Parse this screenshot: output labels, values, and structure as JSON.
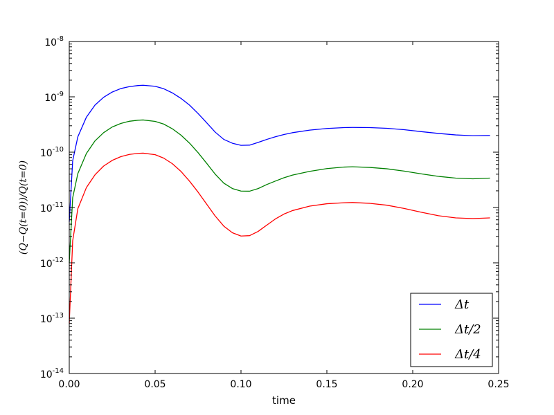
{
  "chart_data": {
    "type": "line",
    "title": "",
    "xlabel": "time",
    "ylabel": "(Q−Q(t=0))/Q(t=0)",
    "xlim": [
      0.0,
      0.25
    ],
    "ylim": [
      1e-14,
      1e-08
    ],
    "yscale": "log",
    "grid": false,
    "legend_position": "lower-right",
    "x_ticks": [
      0.0,
      0.05,
      0.1,
      0.15,
      0.2,
      0.25
    ],
    "x_tick_labels": [
      "0.00",
      "0.05",
      "0.10",
      "0.15",
      "0.20",
      "0.25"
    ],
    "y_ticks": [
      -14,
      -13,
      -12,
      -11,
      -10,
      -9,
      -8
    ],
    "y_tick_labels": [
      {
        "base": "10",
        "exp": "-14"
      },
      {
        "base": "10",
        "exp": "-13"
      },
      {
        "base": "10",
        "exp": "-12"
      },
      {
        "base": "10",
        "exp": "-11"
      },
      {
        "base": "10",
        "exp": "-10"
      },
      {
        "base": "10",
        "exp": "-9"
      },
      {
        "base": "10",
        "exp": "-8"
      }
    ],
    "series": [
      {
        "name": "Δt",
        "color": "#0000ff",
        "x": [
          0.0,
          0.002,
          0.005,
          0.01,
          0.015,
          0.02,
          0.025,
          0.03,
          0.035,
          0.04,
          0.043,
          0.05,
          0.055,
          0.06,
          0.065,
          0.07,
          0.075,
          0.08,
          0.085,
          0.09,
          0.095,
          0.1,
          0.105,
          0.11,
          0.115,
          0.12,
          0.125,
          0.13,
          0.14,
          0.15,
          0.16,
          0.165,
          0.175,
          0.185,
          0.195,
          0.205,
          0.215,
          0.225,
          0.235,
          0.245
        ],
        "y": [
          5.5e-12,
          7e-11,
          1.9e-10,
          4.3e-10,
          7.1e-10,
          9.8e-10,
          1.22e-09,
          1.41e-09,
          1.53e-09,
          1.6e-09,
          1.62e-09,
          1.55e-09,
          1.4e-09,
          1.18e-09,
          9.4e-10,
          7.1e-10,
          5e-10,
          3.4e-10,
          2.3e-10,
          1.7e-10,
          1.45e-10,
          1.33e-10,
          1.34e-10,
          1.5e-10,
          1.7e-10,
          1.9e-10,
          2.08e-10,
          2.25e-10,
          2.5e-10,
          2.68e-10,
          2.78e-10,
          2.8e-10,
          2.78e-10,
          2.7e-10,
          2.55e-10,
          2.35e-10,
          2.18e-10,
          2.05e-10,
          1.98e-10,
          2e-10
        ]
      },
      {
        "name": "Δt/2",
        "color": "#008000",
        "x": [
          0.0,
          0.002,
          0.005,
          0.01,
          0.015,
          0.02,
          0.025,
          0.03,
          0.035,
          0.04,
          0.043,
          0.05,
          0.055,
          0.06,
          0.065,
          0.07,
          0.075,
          0.08,
          0.085,
          0.09,
          0.095,
          0.1,
          0.105,
          0.11,
          0.115,
          0.12,
          0.125,
          0.13,
          0.14,
          0.15,
          0.16,
          0.165,
          0.175,
          0.185,
          0.195,
          0.205,
          0.215,
          0.225,
          0.235,
          0.245
        ],
        "y": [
          1e-12,
          1.5e-11,
          4.1e-11,
          9.5e-11,
          1.6e-10,
          2.25e-10,
          2.85e-10,
          3.3e-10,
          3.62e-10,
          3.78e-10,
          3.82e-10,
          3.6e-10,
          3.22e-10,
          2.65e-10,
          2.04e-10,
          1.46e-10,
          9.8e-11,
          6.3e-11,
          4e-11,
          2.75e-11,
          2.2e-11,
          1.98e-11,
          1.97e-11,
          2.2e-11,
          2.6e-11,
          3e-11,
          3.45e-11,
          3.85e-11,
          4.5e-11,
          5.05e-11,
          5.38e-11,
          5.45e-11,
          5.3e-11,
          5e-11,
          4.55e-11,
          4.05e-11,
          3.65e-11,
          3.4e-11,
          3.3e-11,
          3.4e-11
        ]
      },
      {
        "name": "Δt/4",
        "color": "#ff0000",
        "x": [
          0.0,
          0.002,
          0.005,
          0.01,
          0.015,
          0.02,
          0.025,
          0.03,
          0.035,
          0.04,
          0.043,
          0.05,
          0.055,
          0.06,
          0.065,
          0.07,
          0.075,
          0.08,
          0.085,
          0.09,
          0.095,
          0.1,
          0.105,
          0.11,
          0.115,
          0.12,
          0.125,
          0.13,
          0.14,
          0.15,
          0.16,
          0.165,
          0.175,
          0.185,
          0.195,
          0.205,
          0.215,
          0.225,
          0.235,
          0.245
        ],
        "y": [
          8e-14,
          2.5e-12,
          9.5e-12,
          2.3e-11,
          3.9e-11,
          5.6e-11,
          7.1e-11,
          8.3e-11,
          9.1e-11,
          9.5e-11,
          9.6e-11,
          9e-11,
          7.8e-11,
          6.2e-11,
          4.5e-11,
          3e-11,
          1.9e-11,
          1.15e-11,
          7e-12,
          4.6e-12,
          3.5e-12,
          3.05e-12,
          3.1e-12,
          3.7e-12,
          4.8e-12,
          6.2e-12,
          7.6e-12,
          8.8e-12,
          1.06e-11,
          1.17e-11,
          1.22e-11,
          1.23e-11,
          1.19e-11,
          1.1e-11,
          9.6e-12,
          8.2e-12,
          7.1e-12,
          6.5e-12,
          6.3e-12,
          6.5e-12
        ]
      }
    ]
  }
}
